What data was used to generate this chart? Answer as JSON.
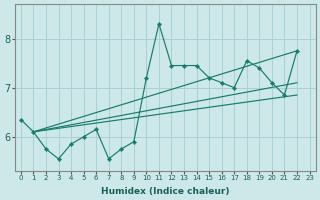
{
  "xlabel": "Humidex (Indice chaleur)",
  "bg_color": "#cce8e8",
  "grid_color": "#aad0d0",
  "line_color": "#1a7a6e",
  "xlim": [
    -0.5,
    23.5
  ],
  "ylim": [
    5.3,
    8.7
  ],
  "yticks": [
    6,
    7,
    8
  ],
  "xticks": [
    0,
    1,
    2,
    3,
    4,
    5,
    6,
    7,
    8,
    9,
    10,
    11,
    12,
    13,
    14,
    15,
    16,
    17,
    18,
    19,
    20,
    21,
    22,
    23
  ],
  "series": [
    {
      "x": [
        0,
        1,
        2,
        3,
        4,
        5,
        6,
        7,
        8,
        9,
        10,
        11,
        12,
        13,
        14,
        15,
        16,
        17,
        18,
        19,
        20,
        21,
        22
      ],
      "y": [
        6.35,
        6.1,
        5.75,
        5.55,
        5.85,
        6.0,
        6.15,
        5.55,
        5.75,
        5.9,
        7.2,
        8.3,
        7.45,
        7.45,
        7.45,
        7.2,
        7.1,
        7.0,
        7.55,
        7.4,
        7.1,
        6.85,
        7.75
      ],
      "marker": true
    }
  ],
  "straight_lines": [
    {
      "x": [
        1,
        22
      ],
      "y": [
        6.1,
        7.75
      ]
    },
    {
      "x": [
        1,
        22
      ],
      "y": [
        6.1,
        6.85
      ]
    },
    {
      "x": [
        1,
        22
      ],
      "y": [
        6.1,
        7.1
      ]
    }
  ]
}
